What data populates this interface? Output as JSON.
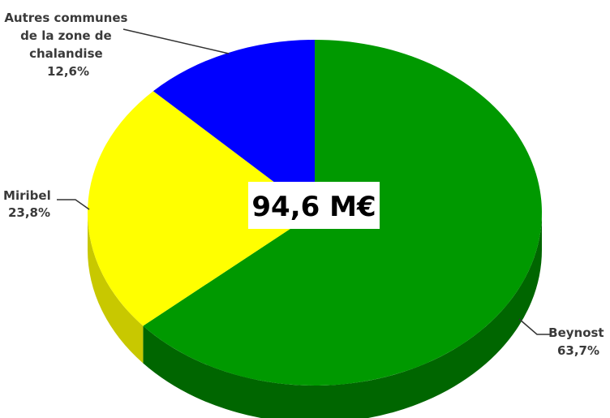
{
  "chart_data": {
    "type": "pie",
    "style": "3d",
    "center_label": "94,6 M€",
    "slices": [
      {
        "label_lines": [
          "Beynost"
        ],
        "value_text": "63,7%",
        "value": 63.7,
        "color": "#009900",
        "side_color": "#006600"
      },
      {
        "label_lines": [
          "Miribel"
        ],
        "value_text": "23,8%",
        "value": 23.8,
        "color": "#ffff00",
        "side_color": "#c8c800"
      },
      {
        "label_lines": [
          "Autres communes",
          "de la zone de",
          "chalandise"
        ],
        "value_text": "12,6%",
        "value": 12.6,
        "color": "#0000ff",
        "side_color": "#0000aa"
      }
    ]
  }
}
